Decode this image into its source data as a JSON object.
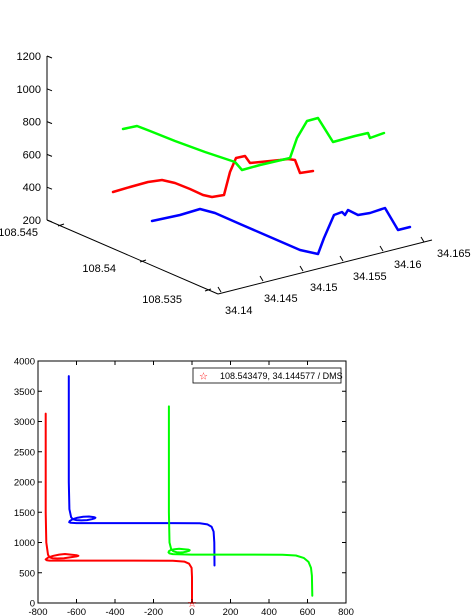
{
  "chart_data": [
    {
      "type": "line",
      "subtype": "3d-line",
      "title": "",
      "axes": {
        "x": {
          "ticks": [
            "108.535",
            "108.54",
            "108.545"
          ],
          "range": [
            108.533,
            108.546
          ]
        },
        "y": {
          "ticks": [
            "34.14",
            "34.145",
            "34.15",
            "34.155",
            "34.16",
            "34.165"
          ],
          "range": [
            34.14,
            34.166
          ]
        },
        "z": {
          "ticks": [
            "200",
            "400",
            "600",
            "800",
            "1000",
            "1200"
          ],
          "range": [
            200,
            1200
          ]
        }
      },
      "grid": false,
      "series": [
        {
          "color": "#ff0000"
        },
        {
          "color": "#00ff00"
        },
        {
          "color": "#0000ff"
        }
      ]
    },
    {
      "type": "line",
      "title": "",
      "xlabel": "",
      "ylabel": "",
      "xlim": [
        -800,
        800
      ],
      "ylim": [
        0,
        4000
      ],
      "xticks": [
        "-800",
        "-600",
        "-400",
        "-200",
        "0",
        "200",
        "400",
        "600",
        "800"
      ],
      "yticks": [
        "0",
        "500",
        "1000",
        "1500",
        "2000",
        "2500",
        "3000",
        "3500",
        "4000"
      ],
      "grid": false,
      "legend": {
        "position": "top-right",
        "marker": "star",
        "marker_color": "#ff0000",
        "label": "108.543479, 34.144577 / DMS"
      },
      "marker_point": {
        "x": 0,
        "y": 0,
        "color": "#ff0000"
      },
      "series": [
        {
          "color": "#ff0000",
          "x": [
            -760,
            -760,
            -757,
            -748,
            -740,
            -725,
            -700,
            -665,
            -630,
            -600,
            -590,
            -600,
            -630,
            -660,
            -690,
            -720,
            -748,
            -760,
            -755,
            -740,
            -700,
            -600,
            -300,
            -100,
            -40,
            -15,
            -2,
            0,
            0
          ],
          "y": [
            3130,
            1500,
            1000,
            800,
            755,
            740,
            735,
            740,
            755,
            770,
            780,
            790,
            800,
            810,
            800,
            780,
            750,
            720,
            705,
            700,
            700,
            700,
            700,
            698,
            685,
            650,
            580,
            430,
            0
          ]
        },
        {
          "color": "#0000ff",
          "x": [
            -640,
            -640,
            -637,
            -628,
            -620,
            -600,
            -575,
            -545,
            -520,
            -505,
            -502,
            -510,
            -535,
            -565,
            -595,
            -620,
            -635,
            -638,
            -630,
            -600,
            -450,
            -100,
            40,
            80,
            102,
            112,
            116,
            117
          ],
          "y": [
            3750,
            2000,
            1550,
            1420,
            1385,
            1370,
            1365,
            1370,
            1385,
            1400,
            1410,
            1420,
            1430,
            1425,
            1410,
            1385,
            1355,
            1335,
            1325,
            1320,
            1320,
            1320,
            1318,
            1300,
            1260,
            1180,
            1000,
            620
          ]
        },
        {
          "color": "#00ff00",
          "x": [
            -120,
            -120,
            -117,
            -108,
            -97,
            -80,
            -62,
            -44,
            -28,
            -15,
            -12,
            -20,
            -42,
            -67,
            -90,
            -108,
            -119,
            -122,
            -117,
            -100,
            0,
            300,
            470,
            540,
            580,
            605,
            618,
            623,
            625
          ],
          "y": [
            3250,
            1500,
            1000,
            890,
            855,
            840,
            835,
            840,
            850,
            862,
            872,
            882,
            890,
            896,
            890,
            878,
            860,
            838,
            820,
            808,
            800,
            800,
            798,
            785,
            745,
            680,
            580,
            450,
            120
          ]
        }
      ]
    }
  ]
}
